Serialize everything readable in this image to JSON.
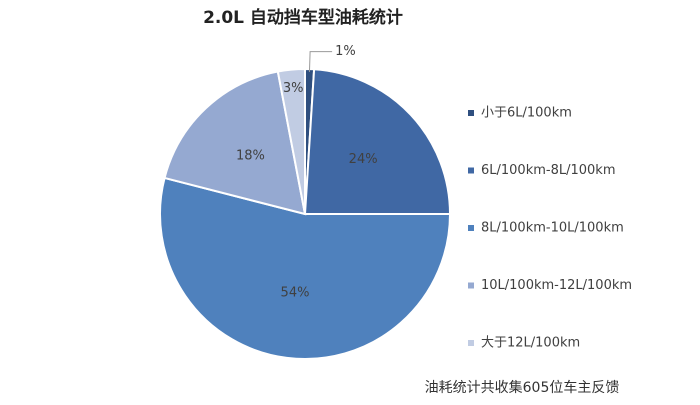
{
  "chart_data": {
    "type": "pie",
    "title": "2.0L 自动挡车型油耗统计",
    "categories": [
      "小于6L/100km",
      "6L/100km-8L/100km",
      "8L/100km-10L/100km",
      "10L/100km-12L/100km",
      "大于12L/100km"
    ],
    "values": [
      1,
      24,
      54,
      18,
      3
    ],
    "value_labels": [
      "1%",
      "24%",
      "54%",
      "18%",
      "3%"
    ],
    "colors": [
      "#2f4f7f",
      "#4068a4",
      "#4f81bd",
      "#95a9d1",
      "#c1cce3"
    ],
    "legend": "right",
    "annotation": "油耗统计共收集605位车主反馈"
  }
}
